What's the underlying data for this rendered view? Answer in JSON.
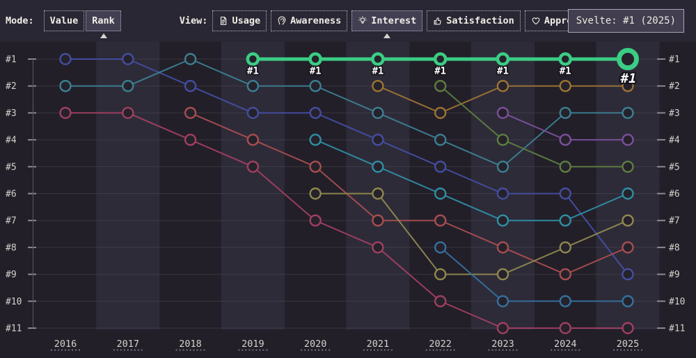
{
  "toolbar": {
    "mode_label": "Mode:",
    "mode_buttons": [
      {
        "label": "Value",
        "selected": false
      },
      {
        "label": "Rank",
        "selected": true
      }
    ],
    "view_label": "View:",
    "view_buttons": [
      {
        "label": "Usage",
        "icon": "document-icon",
        "selected": false
      },
      {
        "label": "Awareness",
        "icon": "ear-icon",
        "selected": false
      },
      {
        "label": "Interest",
        "icon": "lightbulb-icon",
        "selected": true
      },
      {
        "label": "Satisfaction",
        "icon": "thumbs-up-icon",
        "selected": false
      },
      {
        "label": "Appreciation",
        "icon": "heart-icon",
        "selected": false
      }
    ]
  },
  "tooltip": {
    "text": "Svelte: #1 (2025)"
  },
  "chart_data": {
    "type": "line",
    "subtype": "bump-rank-chart",
    "x": [
      2016,
      2017,
      2018,
      2019,
      2020,
      2021,
      2022,
      2023,
      2024,
      2025
    ],
    "rank_labels": [
      "#1",
      "#2",
      "#3",
      "#4",
      "#5",
      "#6",
      "#7",
      "#8",
      "#9",
      "#10",
      "#11"
    ],
    "rank_range": [
      1,
      11
    ],
    "grid": true,
    "legend_position": "none",
    "alternating_band_years": [
      2017,
      2019,
      2021,
      2023,
      2025
    ],
    "highlight_point_label": "#1",
    "series": [
      {
        "id": "svelte-green",
        "label": "Svelte",
        "color": "#3bcd84",
        "highlight": true,
        "point_label": "#1",
        "points": {
          "2019": 1,
          "2020": 1,
          "2021": 1,
          "2022": 1,
          "2023": 1,
          "2024": 1,
          "2025": 1
        }
      },
      {
        "id": "indigo",
        "color": "#444ea1",
        "points": {
          "2016": 1,
          "2017": 1,
          "2018": 2,
          "2019": 3,
          "2020": 3,
          "2021": 4,
          "2022": 5,
          "2023": 6,
          "2024": 6,
          "2025": 9
        }
      },
      {
        "id": "teal",
        "color": "#3c8093",
        "points": {
          "2016": 2,
          "2017": 2,
          "2018": 1,
          "2019": 2,
          "2020": 2,
          "2021": 3,
          "2022": 4,
          "2023": 5,
          "2024": 3,
          "2025": 3
        }
      },
      {
        "id": "crimson",
        "color": "#a23f60",
        "points": {
          "2016": 3,
          "2017": 3,
          "2018": 4,
          "2019": 5,
          "2020": 7,
          "2021": 8,
          "2022": 10,
          "2023": 11,
          "2024": 11,
          "2025": 11
        }
      },
      {
        "id": "red",
        "color": "#a84e50",
        "points": {
          "2018": 3,
          "2019": 4,
          "2020": 5,
          "2021": 7,
          "2022": 7,
          "2023": 8,
          "2024": 9,
          "2025": 8
        }
      },
      {
        "id": "gold",
        "color": "#9d7434",
        "points": {
          "2021": 2,
          "2022": 3,
          "2023": 2,
          "2024": 2,
          "2025": 2
        }
      },
      {
        "id": "cyan-teal",
        "color": "#2f8fa3",
        "points": {
          "2020": 4,
          "2021": 5,
          "2022": 6,
          "2023": 7,
          "2024": 7,
          "2025": 6
        }
      },
      {
        "id": "khaki",
        "color": "#8f894e",
        "points": {
          "2020": 6,
          "2021": 6,
          "2022": 9,
          "2023": 9,
          "2024": 8,
          "2025": 7
        }
      },
      {
        "id": "olive-green",
        "color": "#5e7e40",
        "points": {
          "2022": 2,
          "2023": 4,
          "2024": 5,
          "2025": 5
        }
      },
      {
        "id": "blue",
        "color": "#35719e",
        "points": {
          "2022": 8,
          "2023": 10,
          "2024": 10,
          "2025": 10
        }
      },
      {
        "id": "purple",
        "color": "#7b509c",
        "points": {
          "2023": 3,
          "2024": 4,
          "2025": 4
        }
      }
    ],
    "style": {
      "background": "#221f29",
      "topbar_background": "#2a2734",
      "band": "#2e2b39",
      "grid": "#55515d",
      "tick": "#8c8995",
      "axis": "#56525e",
      "text": "#d5d2cb",
      "marker_fill": "#25222b",
      "highlight_label_color": "#ffffff",
      "highlight_label_outline": "#15131a"
    }
  }
}
